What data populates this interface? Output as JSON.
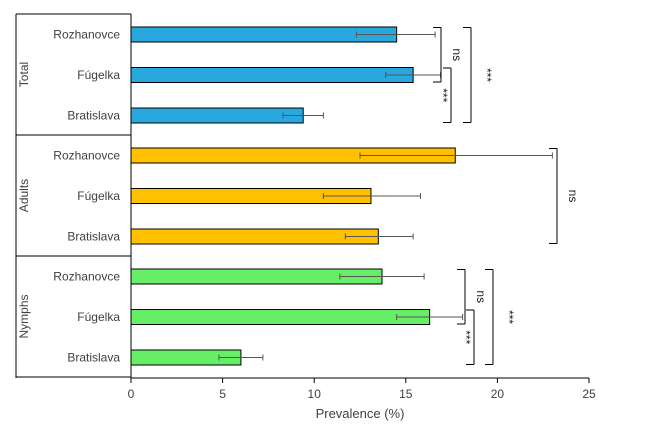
{
  "chart_data": {
    "type": "bar",
    "orientation": "horizontal",
    "xlabel": "Prevalence (%)",
    "xlim": [
      0,
      25
    ],
    "xticks": [
      0,
      5,
      10,
      15,
      20,
      25
    ],
    "grid": false,
    "groups": [
      {
        "name": "Total",
        "color": "#29A8E0",
        "bars": [
          {
            "category": "Rozhanovce",
            "value": 14.5,
            "err_low": 12.3,
            "err_high": 16.6
          },
          {
            "category": "Fúgelka",
            "value": 15.4,
            "err_low": 13.9,
            "err_high": 16.9
          },
          {
            "category": "Bratislava",
            "value": 9.4,
            "err_low": 8.3,
            "err_high": 10.5
          }
        ],
        "significance": [
          {
            "between": [
              "Rozhanovce",
              "Fúgelka"
            ],
            "label": "ns"
          },
          {
            "between": [
              "Fúgelka",
              "Bratislava"
            ],
            "label": "***"
          },
          {
            "between": [
              "Rozhanovce",
              "Bratislava"
            ],
            "label": "***"
          }
        ]
      },
      {
        "name": "Adults",
        "color": "#FFC000",
        "bars": [
          {
            "category": "Rozhanovce",
            "value": 17.7,
            "err_low": 12.5,
            "err_high": 23.0
          },
          {
            "category": "Fúgelka",
            "value": 13.1,
            "err_low": 10.5,
            "err_high": 15.8
          },
          {
            "category": "Bratislava",
            "value": 13.5,
            "err_low": 11.7,
            "err_high": 15.4
          }
        ],
        "significance": [
          {
            "between": [
              "Rozhanovce",
              "Bratislava"
            ],
            "label": "ns"
          }
        ]
      },
      {
        "name": "Nymphs",
        "color": "#66EE66",
        "bars": [
          {
            "category": "Rozhanovce",
            "value": 13.7,
            "err_low": 11.4,
            "err_high": 16.0
          },
          {
            "category": "Fúgelka",
            "value": 16.3,
            "err_low": 14.5,
            "err_high": 18.1
          },
          {
            "category": "Bratislava",
            "value": 6.0,
            "err_low": 4.8,
            "err_high": 7.2
          }
        ],
        "significance": [
          {
            "between": [
              "Rozhanovce",
              "Fúgelka"
            ],
            "label": "ns"
          },
          {
            "between": [
              "Fúgelka",
              "Bratislava"
            ],
            "label": "***"
          },
          {
            "between": [
              "Rozhanovce",
              "Bratislava"
            ],
            "label": "***"
          }
        ]
      }
    ]
  }
}
